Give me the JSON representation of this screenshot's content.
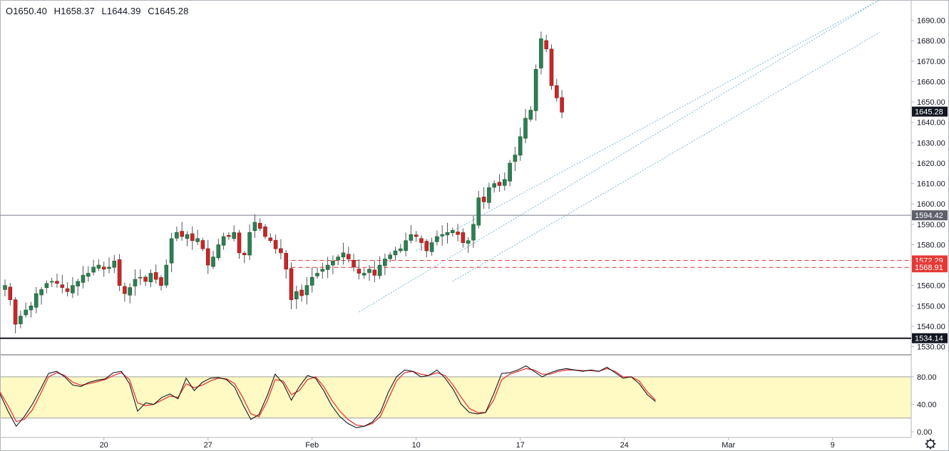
{
  "ohlc": {
    "open": "O1650.40",
    "high": "H1658.37",
    "low": "L1644.39",
    "close": "C1645.28"
  },
  "colors": {
    "up": "#26a69a",
    "up_fill": "#2e7d5b",
    "down": "#c62828",
    "wick": "#555555",
    "band": "#fff9c4",
    "k_line": "#131722",
    "d_line": "#e53935",
    "channel": "#7fb6d6",
    "support_red": "#e53935",
    "label_dark": "#131722",
    "label_grey": "#5d606b"
  },
  "chart_data": [
    {
      "type": "candlestick",
      "title": "",
      "y_range": [
        1526,
        1700
      ],
      "y_ticks": [
        "1530.00",
        "1540.00",
        "1550.00",
        "1560.00",
        "1570.00",
        "1580.00",
        "1590.00",
        "1600.00",
        "1610.00",
        "1620.00",
        "1630.00",
        "1640.00",
        "1650.00",
        "1660.00",
        "1670.00",
        "1680.00",
        "1690.00"
      ],
      "x_ticks": [
        {
          "label": "20",
          "bar": 19
        },
        {
          "label": "27",
          "bar": 39
        },
        {
          "label": "Feb",
          "bar": 59
        },
        {
          "label": "10",
          "bar": 79
        },
        {
          "label": "17",
          "bar": 99
        },
        {
          "label": "24",
          "bar": 119
        },
        {
          "label": "Mar",
          "bar": 139
        },
        {
          "label": "9",
          "bar": 159
        }
      ],
      "closes": [
        1560,
        1553,
        1541,
        1545,
        1548,
        1550,
        1556,
        1558,
        1561,
        1562,
        1561,
        1559,
        1557,
        1560,
        1562,
        1565,
        1566,
        1569,
        1570,
        1568,
        1569,
        1572,
        1560,
        1556,
        1559,
        1563,
        1564,
        1562,
        1566,
        1563,
        1560,
        1570,
        1583,
        1586,
        1584,
        1585,
        1582,
        1583,
        1578,
        1570,
        1574,
        1580,
        1584,
        1584,
        1586,
        1576,
        1575,
        1586,
        1591,
        1588,
        1584,
        1582,
        1578,
        1576,
        1568,
        1553,
        1557,
        1555,
        1560,
        1564,
        1566,
        1568,
        1570,
        1572,
        1574,
        1576,
        1573,
        1569,
        1566,
        1566,
        1568,
        1565,
        1570,
        1573,
        1575,
        1577,
        1578,
        1582,
        1585,
        1584,
        1581,
        1577,
        1581,
        1584,
        1585,
        1586,
        1587,
        1585,
        1581,
        1582,
        1590,
        1603,
        1601,
        1608,
        1610,
        1609,
        1612,
        1620,
        1624,
        1633,
        1642,
        1646,
        1666,
        1681,
        1676,
        1658,
        1652,
        1645
      ],
      "horizontal_levels": [
        {
          "value": 1594.42,
          "label": "1594.42",
          "style": "solid-grey"
        },
        {
          "value": 1572.29,
          "label": "1572.29",
          "style": "dashed-red"
        },
        {
          "value": 1568.91,
          "label": "1568.91",
          "style": "dashed-red"
        },
        {
          "value": 1534.14,
          "label": "1534.14",
          "style": "solid-black"
        }
      ],
      "last_price": {
        "value": 1645.28,
        "label": "1645.28"
      },
      "channel_lines": [
        {
          "from": {
            "bar": 79,
            "value": 1577
          },
          "to": {
            "bar": 168,
            "value": 1700
          }
        },
        {
          "from": {
            "bar": 68,
            "value": 1547
          },
          "to": {
            "bar": 168,
            "value": 1700
          }
        },
        {
          "from": {
            "bar": 86,
            "value": 1562
          },
          "to": {
            "bar": 168,
            "value": 1684
          }
        }
      ]
    },
    {
      "type": "line",
      "title": "",
      "y_range": [
        0,
        110
      ],
      "y_ticks": [
        "0.00",
        "40.00",
        "80.00"
      ],
      "band": [
        20,
        80
      ],
      "series": [
        {
          "values": [
            55,
            30,
            8,
            22,
            40,
            62,
            85,
            88,
            80,
            68,
            66,
            72,
            75,
            77,
            86,
            88,
            70,
            30,
            42,
            40,
            50,
            55,
            48,
            78,
            60,
            72,
            78,
            79,
            76,
            65,
            40,
            18,
            25,
            52,
            84,
            70,
            46,
            66,
            82,
            78,
            60,
            38,
            22,
            12,
            6,
            8,
            14,
            28,
            58,
            80,
            90,
            88,
            80,
            82,
            90,
            78,
            62,
            40,
            28,
            26,
            28,
            55,
            85,
            86,
            90,
            96,
            88,
            80,
            86,
            90,
            92,
            90,
            88,
            90,
            88,
            94,
            86,
            78,
            80,
            70,
            54,
            44
          ]
        },
        {
          "values": [
            58,
            38,
            15,
            18,
            32,
            55,
            80,
            86,
            82,
            72,
            68,
            70,
            73,
            76,
            82,
            86,
            76,
            42,
            38,
            40,
            46,
            52,
            50,
            70,
            64,
            68,
            74,
            78,
            77,
            70,
            50,
            26,
            22,
            44,
            76,
            74,
            54,
            60,
            76,
            80,
            66,
            46,
            30,
            18,
            10,
            8,
            12,
            22,
            48,
            74,
            86,
            88,
            84,
            82,
            86,
            82,
            68,
            50,
            34,
            28,
            28,
            46,
            76,
            84,
            88,
            92,
            90,
            84,
            84,
            88,
            90,
            90,
            89,
            89,
            88,
            92,
            88,
            80,
            80,
            74,
            58,
            46
          ]
        }
      ]
    }
  ]
}
